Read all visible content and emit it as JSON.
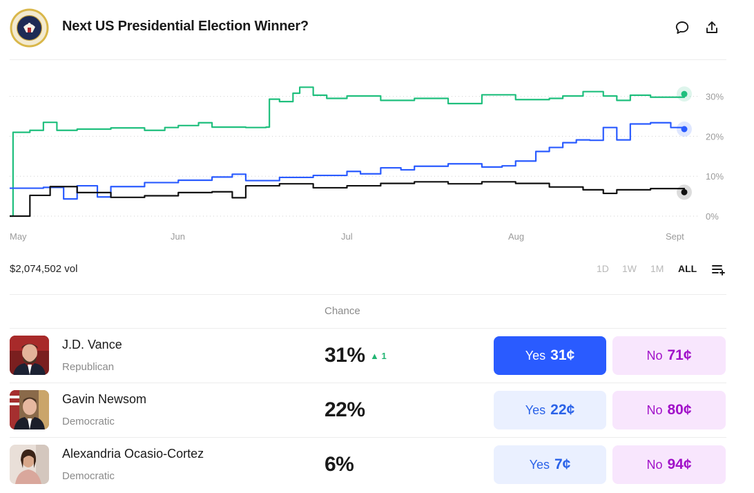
{
  "header": {
    "title": "Next US Presidential Election Winner?",
    "seal_icon": "presidential-seal-icon",
    "comment_icon": "comment-icon",
    "share_icon": "share-icon"
  },
  "chart_data": {
    "type": "line",
    "x_ticks": [
      "May",
      "Jun",
      "Jul",
      "Aug",
      "Sept"
    ],
    "y_ticks": [
      "30%",
      "20%",
      "10%",
      "0%"
    ],
    "ylim": [
      0,
      35
    ],
    "grid": true,
    "series": [
      {
        "name": "J.D. Vance",
        "color": "#1fbf7d",
        "x": [
          0.0,
          0.005,
          0.03,
          0.05,
          0.07,
          0.1,
          0.15,
          0.2,
          0.23,
          0.25,
          0.28,
          0.3,
          0.35,
          0.38,
          0.385,
          0.4,
          0.42,
          0.43,
          0.45,
          0.47,
          0.5,
          0.55,
          0.6,
          0.65,
          0.7,
          0.75,
          0.8,
          0.82,
          0.85,
          0.88,
          0.9,
          0.92,
          0.95,
          1.0
        ],
        "values": [
          0,
          21,
          21.5,
          23.5,
          21.5,
          21.8,
          22.1,
          21.5,
          22.2,
          22.7,
          23.4,
          22.3,
          22.2,
          22.3,
          29.3,
          28.7,
          30.8,
          32.3,
          30.3,
          29.5,
          30.1,
          29.0,
          29.5,
          28.2,
          30.4,
          29.2,
          29.5,
          30.1,
          31.2,
          30.1,
          29.0,
          30.3,
          29.8,
          30.6
        ]
      },
      {
        "name": "Gavin Newsom",
        "color": "#2a5bff",
        "x": [
          0.0,
          0.05,
          0.08,
          0.1,
          0.13,
          0.15,
          0.2,
          0.25,
          0.3,
          0.33,
          0.35,
          0.4,
          0.45,
          0.5,
          0.52,
          0.55,
          0.58,
          0.6,
          0.65,
          0.7,
          0.73,
          0.75,
          0.78,
          0.8,
          0.82,
          0.84,
          0.86,
          0.88,
          0.9,
          0.92,
          0.95,
          0.98,
          1.0
        ],
        "values": [
          7,
          7.2,
          4.3,
          7.6,
          4.8,
          7.4,
          8.4,
          9.0,
          9.8,
          10.5,
          8.9,
          9.7,
          10.2,
          11.2,
          10.6,
          12.1,
          11.6,
          12.5,
          13.1,
          12.3,
          12.6,
          13.8,
          16.2,
          17.2,
          18.4,
          19.1,
          19.0,
          22.2,
          19.1,
          23.1,
          23.4,
          22.2,
          21.8
        ]
      },
      {
        "name": "Alexandria Ocasio-Cortez",
        "color": "#111111",
        "x": [
          0.0,
          0.03,
          0.06,
          0.1,
          0.15,
          0.2,
          0.25,
          0.3,
          0.33,
          0.35,
          0.4,
          0.45,
          0.5,
          0.55,
          0.6,
          0.65,
          0.7,
          0.75,
          0.8,
          0.85,
          0.88,
          0.9,
          0.95,
          1.0
        ],
        "values": [
          0,
          5.2,
          7.4,
          5.9,
          4.7,
          5.1,
          5.9,
          6.1,
          4.6,
          7.6,
          8.1,
          7.1,
          7.6,
          8.2,
          8.6,
          8.1,
          8.6,
          8.2,
          7.3,
          6.6,
          5.7,
          6.6,
          6.9,
          6.0
        ]
      }
    ]
  },
  "market": {
    "volume": "$2,074,502 vol",
    "ranges": [
      "1D",
      "1W",
      "1M",
      "ALL"
    ],
    "active_range": "ALL",
    "filter_icon": "playlist-add-icon"
  },
  "table": {
    "chance_header": "Chance",
    "rows": [
      {
        "name": "J.D. Vance",
        "party": "Republican",
        "chance": "31%",
        "delta": "1",
        "yes_label": "Yes",
        "yes_price": "31¢",
        "no_label": "No",
        "no_price": "71¢"
      },
      {
        "name": "Gavin Newsom",
        "party": "Democratic",
        "chance": "22%",
        "delta": "",
        "yes_label": "Yes",
        "yes_price": "22¢",
        "no_label": "No",
        "no_price": "80¢"
      },
      {
        "name": "Alexandria Ocasio-Cortez",
        "party": "Democratic",
        "chance": "6%",
        "delta": "",
        "yes_label": "Yes",
        "yes_price": "7¢",
        "no_label": "No",
        "no_price": "94¢"
      }
    ]
  }
}
